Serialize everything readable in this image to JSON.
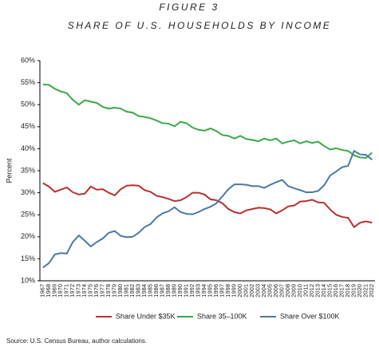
{
  "chart_data": {
    "type": "line",
    "title": "FIGURE 3",
    "subtitle": "SHARE OF U.S. HOUSEHOLDS BY INCOME",
    "y_label": "Percent",
    "source": "Source: U.S. Census Bureau, author calculations.",
    "categories": [
      "1967",
      "1968",
      "1969",
      "1970",
      "1971",
      "1972",
      "1973",
      "1974",
      "1975",
      "1976",
      "1977",
      "1978",
      "1979",
      "1980",
      "1981",
      "1982",
      "1983",
      "1984",
      "1985",
      "1986",
      "1987",
      "1988",
      "1989",
      "1990",
      "1991",
      "1992",
      "1993",
      "1994",
      "1995",
      "1996",
      "1997",
      "1998",
      "1999",
      "2000",
      "2001",
      "2002",
      "2003",
      "2004",
      "2005",
      "2006",
      "2007",
      "2008",
      "2009",
      "2010",
      "2011",
      "2012",
      "2013",
      "2014",
      "2015",
      "2016",
      "2017",
      "2018",
      "2019",
      "2020",
      "2021",
      "2022"
    ],
    "series": [
      {
        "name": "Share Under $35K",
        "color": "#b8312f",
        "values": [
          32.2,
          31.4,
          30.2,
          30.7,
          31.2,
          30.1,
          29.6,
          29.8,
          31.4,
          30.7,
          30.8,
          30.0,
          29.4,
          30.8,
          31.6,
          31.7,
          31.6,
          30.6,
          30.2,
          29.3,
          29.0,
          28.6,
          28.1,
          28.3,
          29.0,
          30.0,
          30.0,
          29.6,
          28.5,
          28.3,
          27.6,
          26.3,
          25.6,
          25.3,
          26.0,
          26.3,
          26.6,
          26.5,
          26.2,
          25.3,
          26.0,
          26.9,
          27.1,
          28.0,
          28.1,
          28.4,
          27.8,
          27.7,
          26.2,
          25.0,
          24.5,
          24.3,
          22.2,
          23.2,
          23.5,
          23.2
        ]
      },
      {
        "name": "Share 35–100K",
        "color": "#3aa84a",
        "values": [
          54.6,
          54.5,
          53.6,
          53.0,
          52.6,
          51.1,
          50.0,
          51.0,
          50.7,
          50.4,
          49.5,
          49.1,
          49.3,
          49.1,
          48.4,
          48.2,
          47.4,
          47.2,
          46.9,
          46.4,
          45.8,
          45.7,
          45.1,
          46.1,
          45.8,
          44.8,
          44.3,
          44.1,
          44.6,
          44.0,
          43.1,
          42.9,
          42.3,
          42.9,
          42.2,
          42.0,
          41.7,
          42.3,
          41.9,
          42.3,
          41.2,
          41.6,
          41.9,
          41.2,
          41.7,
          41.3,
          41.6,
          40.6,
          39.8,
          40.1,
          39.7,
          39.5,
          38.5,
          38.0,
          37.9,
          39.1
        ]
      },
      {
        "name": "Share Over $100K",
        "color": "#4a78a6",
        "values": [
          13.0,
          14.0,
          16.0,
          16.3,
          16.2,
          18.8,
          20.3,
          19.1,
          17.8,
          18.8,
          19.6,
          20.9,
          21.3,
          20.2,
          19.9,
          20.0,
          20.9,
          22.2,
          22.9,
          24.4,
          25.3,
          25.8,
          26.7,
          25.6,
          25.2,
          25.1,
          25.6,
          26.3,
          26.8,
          27.6,
          29.2,
          30.8,
          31.9,
          31.9,
          31.8,
          31.5,
          31.5,
          31.1,
          31.8,
          32.4,
          32.9,
          31.5,
          31.0,
          30.6,
          30.1,
          30.1,
          30.4,
          31.7,
          33.9,
          34.8,
          35.8,
          36.1,
          39.5,
          38.7,
          38.6,
          37.5
        ]
      }
    ],
    "ylim": [
      10,
      60
    ],
    "yticks": [
      {
        "value": 10,
        "label": "10%"
      },
      {
        "value": 15,
        "label": "15%"
      },
      {
        "value": 20,
        "label": "20%"
      },
      {
        "value": 25,
        "label": "25%"
      },
      {
        "value": 30,
        "label": "30%"
      },
      {
        "value": 35,
        "label": "35%"
      },
      {
        "value": 40,
        "label": "40%"
      },
      {
        "value": 45,
        "label": "45%"
      },
      {
        "value": 50,
        "label": "50%"
      },
      {
        "value": 55,
        "label": "55%"
      },
      {
        "value": 60,
        "label": "60%"
      }
    ],
    "grid": false,
    "legend": "bottom"
  }
}
